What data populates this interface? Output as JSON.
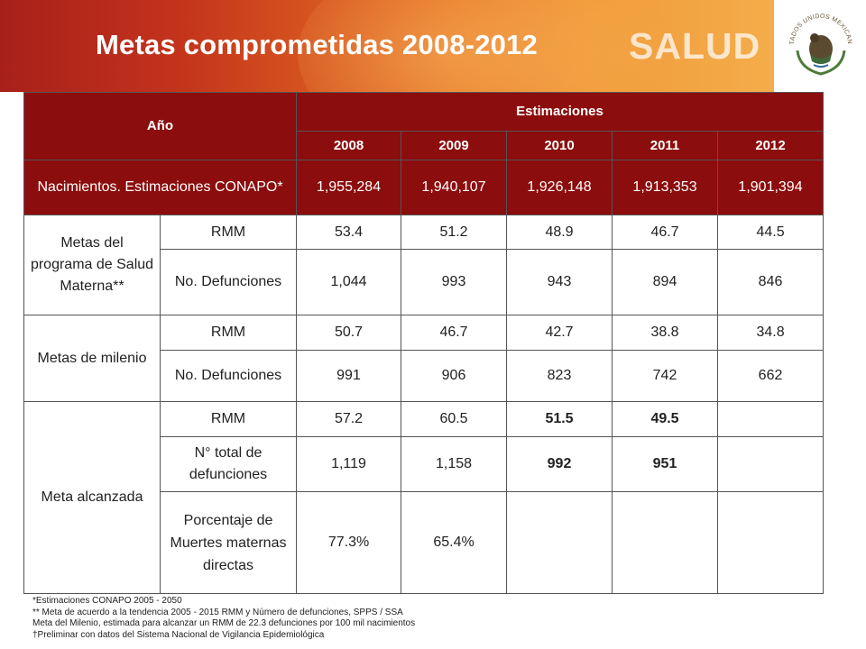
{
  "header": {
    "title": "Metas comprometidas 2008-2012",
    "brand": "SALUD",
    "seal_text": "ESTADOS UNIDOS MEXICANOS"
  },
  "colors": {
    "header_dark": "#8c0d0d",
    "banner_left": "#a8201a",
    "banner_right": "#f4ad4a"
  },
  "table": {
    "year_label": "Año",
    "estimates_label": "Estimaciones",
    "years": [
      "2008",
      "2009",
      "2010",
      "2011",
      "2012"
    ],
    "births": {
      "label": "Nacimientos. Estimaciones CONAPO*",
      "values": [
        "1,955,284",
        "1,940,107",
        "1,926,148",
        "1,913,353",
        "1,901,394"
      ]
    },
    "groups": [
      {
        "label": "Metas del programa de Salud Materna**",
        "rows": [
          {
            "label": "RMM",
            "values": [
              "53.4",
              "51.2",
              "48.9",
              "46.7",
              "44.5"
            ]
          },
          {
            "label": "No. Defunciones",
            "values": [
              "1,044",
              "993",
              "943",
              "894",
              "846"
            ]
          }
        ]
      },
      {
        "label": "Metas de milenio",
        "rows": [
          {
            "label": "RMM",
            "values": [
              "50.7",
              "46.7",
              "42.7",
              "38.8",
              "34.8"
            ]
          },
          {
            "label": "No. Defunciones",
            "values": [
              "991",
              "906",
              "823",
              "742",
              "662"
            ]
          }
        ]
      },
      {
        "label": "Meta alcanzada",
        "rows": [
          {
            "label": "RMM",
            "values": [
              "57.2",
              "60.5",
              "51.5",
              "49.5",
              ""
            ]
          },
          {
            "label": "N° total de defunciones",
            "values": [
              "1,119",
              "1,158",
              "992",
              "951",
              ""
            ]
          },
          {
            "label": "Porcentaje de Muertes maternas directas",
            "values": [
              "77.3%",
              "65.4%",
              "",
              "",
              ""
            ]
          }
        ]
      }
    ]
  },
  "footnotes": [
    "*Estimaciones CONAPO 2005 - 2050",
    "** Meta de acuerdo a la tendencia 2005 - 2015 RMM y Número de defunciones, SPPS / SSA",
    "Meta del Milenio, estimada para alcanzar un RMM de 22.3 defunciones por 100 mil nacimientos",
    "†Preliminar con datos del Sistema Nacional de Vigilancia Epidemiológica"
  ]
}
